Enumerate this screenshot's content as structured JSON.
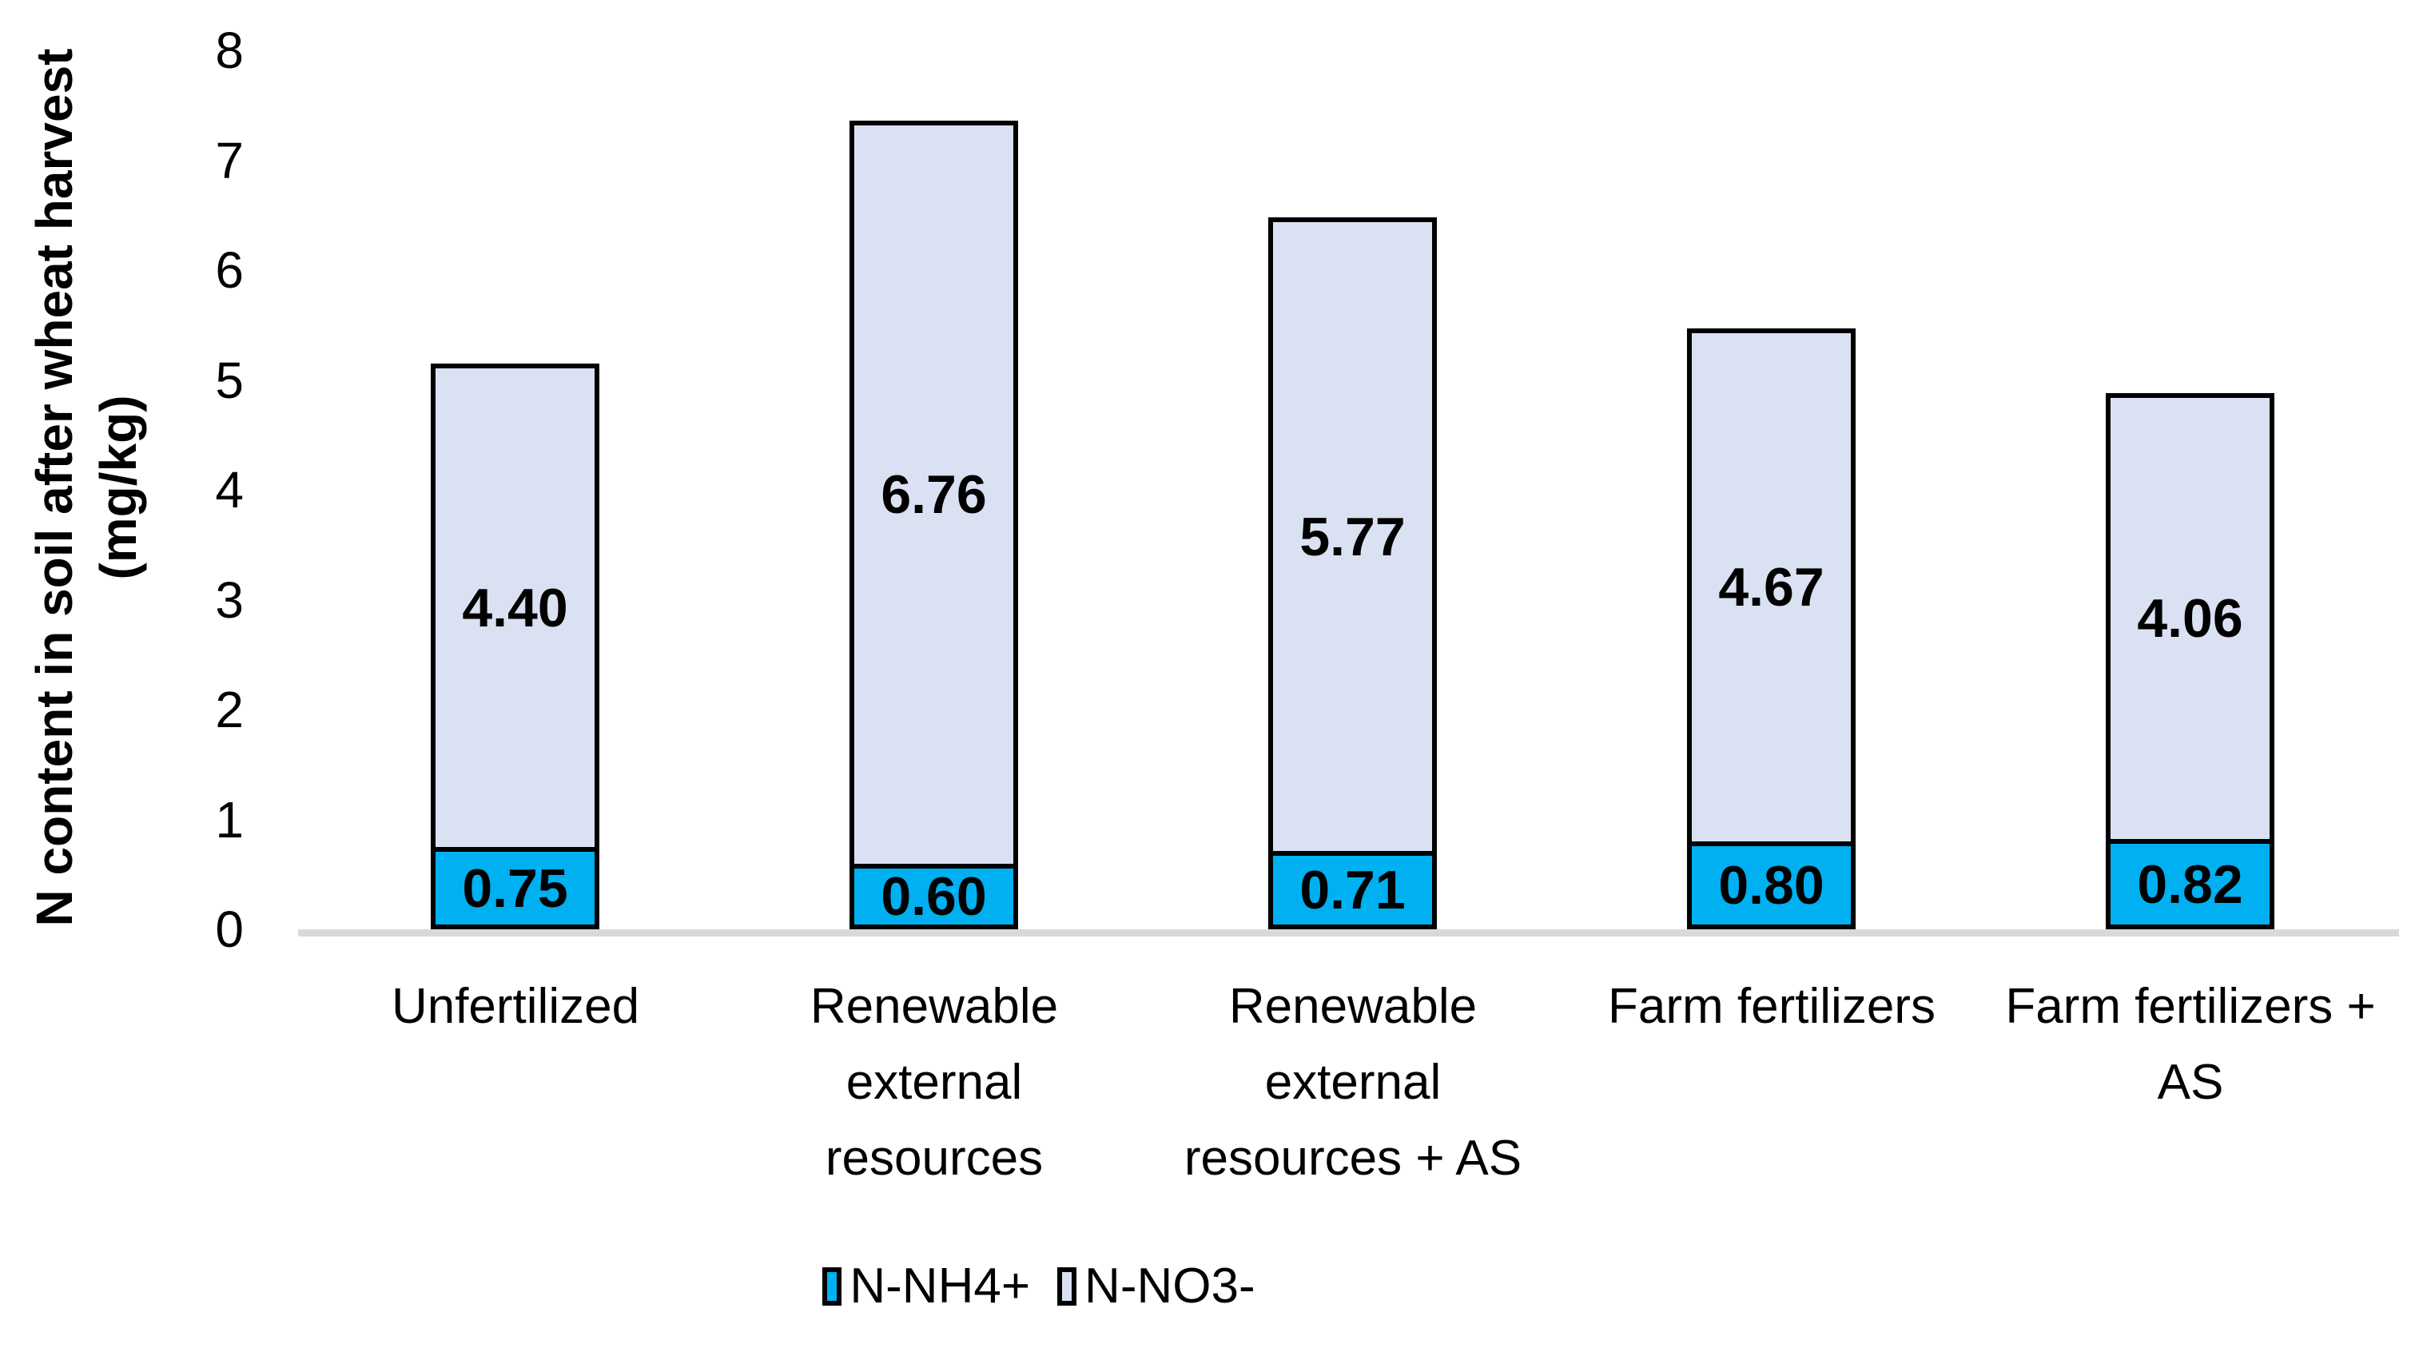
{
  "chart_data": {
    "type": "bar",
    "stacked": true,
    "title": "",
    "ylabel": "N content in soil after wheat harvest (mg/kg)",
    "ylabel_lines": [
      "N content in soil after wheat harvest",
      "(mg/kg)"
    ],
    "ylim": [
      0,
      8
    ],
    "yticks": [
      "0",
      "1",
      "2",
      "3",
      "4",
      "5",
      "6",
      "7",
      "8"
    ],
    "grid": false,
    "legend_position": "bottom",
    "categories": [
      "Unfertilized",
      "Renewable external resources",
      "Renewable external resources + AS",
      "Farm fertilizers",
      "Farm fertilizers + AS"
    ],
    "category_lines": [
      [
        "Unfertilized"
      ],
      [
        "Renewable",
        "external",
        "resources"
      ],
      [
        "Renewable",
        "external",
        "resources + AS"
      ],
      [
        "Farm fertilizers"
      ],
      [
        "Farm fertilizers +",
        "AS"
      ]
    ],
    "series": [
      {
        "name": "N-NH4+",
        "color": "#00B0F0",
        "values": [
          0.75,
          0.6,
          0.71,
          0.8,
          0.82
        ]
      },
      {
        "name": "N-NO3-",
        "color": "#D9E1F2",
        "values": [
          4.4,
          6.76,
          5.77,
          4.67,
          4.06
        ]
      }
    ],
    "value_label_decimals": 2,
    "bar_border_color": "#000000",
    "axis_line_color": "#D9D9D9",
    "text_color": "#000000",
    "background": "#FFFFFF"
  }
}
